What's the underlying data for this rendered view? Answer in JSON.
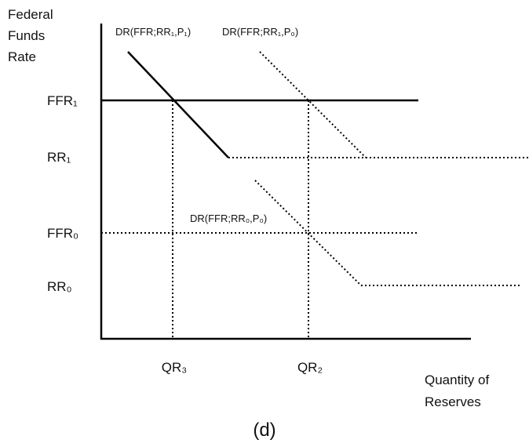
{
  "y_axis_label": [
    "Federal",
    "Funds",
    "Rate"
  ],
  "x_axis_label": [
    "Quantity of",
    "Reserves"
  ],
  "levels": [
    "FFR₁",
    "RR₁",
    "FFR₀",
    "RR₀"
  ],
  "quantities": [
    "QR₃",
    "QR₂"
  ],
  "curves": [
    "DR(FFR;RR₁,P₁)",
    "DR(FFR;RR₁,P₀)",
    "DR(FFR;RR₀,P₀)"
  ],
  "caption": "(d)"
}
